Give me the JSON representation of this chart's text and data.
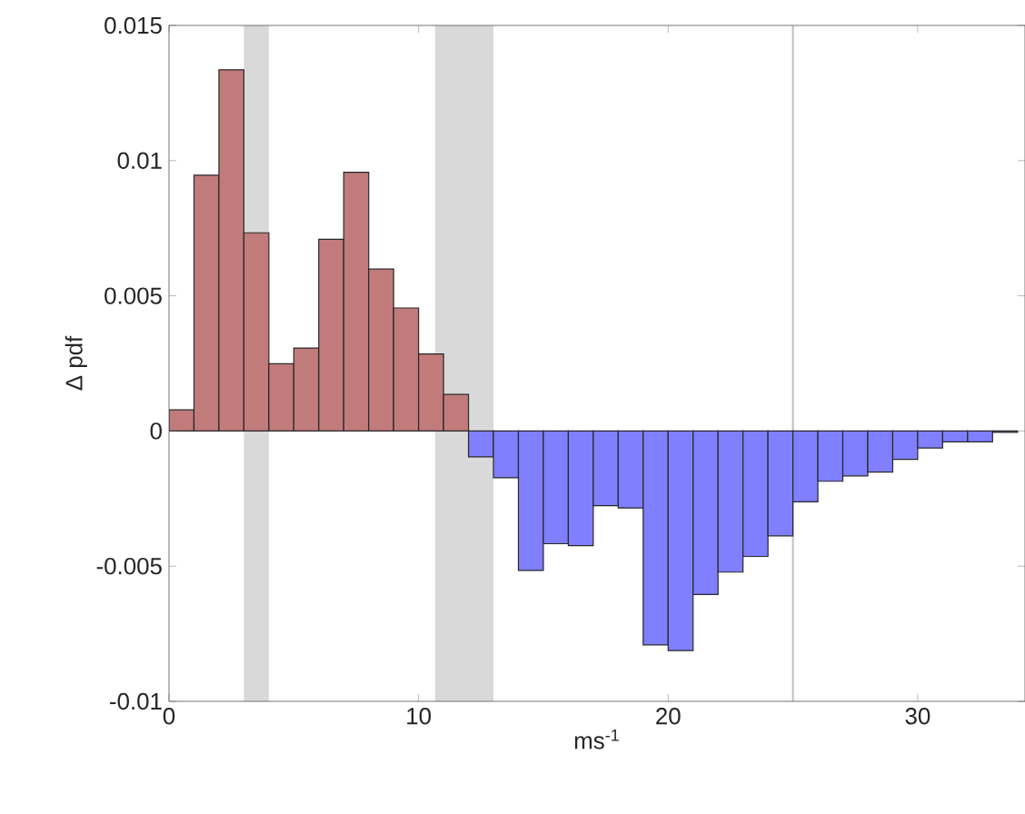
{
  "chart_data": {
    "type": "histogram",
    "xlabel": "ms$^{-1}$",
    "ylabel": "Δ pdf",
    "bins": [
      0,
      1,
      2,
      3,
      4,
      5,
      6,
      7,
      8,
      9,
      10,
      11,
      12,
      13,
      14,
      15,
      16,
      17,
      18,
      19,
      20,
      21,
      22,
      23,
      24,
      25,
      26,
      27,
      28,
      29,
      30,
      31,
      32,
      33,
      34
    ],
    "values": [
      0.00078,
      0.00946,
      0.01336,
      0.00733,
      0.00249,
      0.00307,
      0.00709,
      0.00957,
      0.00599,
      0.00455,
      0.00285,
      0.00135,
      -0.00096,
      -0.00173,
      -0.00516,
      -0.00417,
      -0.00424,
      -0.00276,
      -0.00285,
      -0.00791,
      -0.00812,
      -0.00605,
      -0.00522,
      -0.00464,
      -0.00388,
      -0.00262,
      -0.00186,
      -0.00166,
      -0.00152,
      -0.00105,
      -0.00063,
      -0.0004,
      -0.0004,
      -5e-05
    ],
    "colors": [
      "#c27b7b",
      "#c27b7b",
      "#c27b7b",
      "#c27b7b",
      "#c27b7b",
      "#c27b7b",
      "#c27b7b",
      "#c27b7b",
      "#c27b7b",
      "#c27b7b",
      "#c27b7b",
      "#c27b7b",
      "#7f7fff",
      "#7f7fff",
      "#7f7fff",
      "#7f7fff",
      "#7f7fff",
      "#7f7fff",
      "#7f7fff",
      "#7f7fff",
      "#7f7fff",
      "#7f7fff",
      "#7f7fff",
      "#7f7fff",
      "#7f7fff",
      "#7f7fff",
      "#7f7fff",
      "#7f7fff",
      "#7f7fff",
      "#7f7fff",
      "#7f7fff",
      "#7f7fff",
      "#7f7fff",
      "#7f7fff"
    ],
    "xlim": [
      0,
      34.3
    ],
    "ylim": [
      -0.01,
      0.015
    ],
    "xticks": [
      0,
      10,
      20,
      30
    ],
    "yticks": [
      -0.01,
      -0.005,
      0,
      0.005,
      0.01,
      0.015
    ],
    "bands": [
      {
        "axis": "x",
        "from": 3,
        "to": 4,
        "color": "#d9d9d9"
      },
      {
        "axis": "x",
        "from": 10.66,
        "to": 13,
        "color": "#d9d9d9"
      }
    ],
    "ref_lines": [
      {
        "axis": "x",
        "value": 25,
        "color": "#c0c0c0"
      }
    ]
  }
}
